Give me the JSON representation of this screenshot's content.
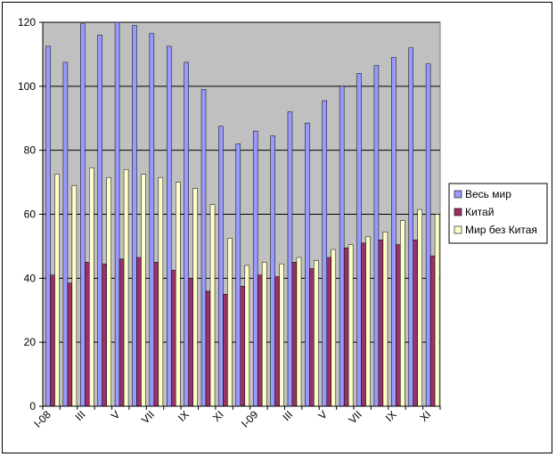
{
  "chart_data": {
    "type": "bar",
    "title": "",
    "xlabel": "",
    "ylabel": "",
    "ylim": [
      0,
      120
    ],
    "yticks": [
      0,
      20,
      40,
      60,
      80,
      100,
      120
    ],
    "grid": true,
    "legend_position": "right",
    "x_tick_labels": [
      "I-08",
      "III",
      "V",
      "VII",
      "IX",
      "XI",
      "I-09",
      "III",
      "V",
      "VII",
      "IX",
      "XI"
    ],
    "x_tick_every": 2,
    "n_periods": 23,
    "series": [
      {
        "name": "Весь мир",
        "color": "#9999ff",
        "values": [
          112.5,
          107.5,
          119.5,
          116,
          120,
          119,
          116.5,
          112.5,
          107.5,
          99,
          87.5,
          82,
          86,
          84.5,
          92,
          88.5,
          95.5,
          100,
          104,
          106.5,
          109,
          112,
          107
        ]
      },
      {
        "name": "Китай",
        "color": "#993366",
        "values": [
          41,
          38.5,
          45,
          44.5,
          46,
          46.5,
          45,
          42.5,
          40,
          36,
          35,
          37.5,
          41,
          40.5,
          45,
          43,
          46.5,
          49.5,
          51,
          52,
          50.5,
          52,
          47
        ]
      },
      {
        "name": "Мир без Китая",
        "color": "#ffffcc",
        "values": [
          72.5,
          69,
          74.5,
          71.5,
          74,
          72.5,
          71.5,
          70,
          68,
          63,
          52.5,
          44,
          45,
          44.5,
          46.5,
          45.5,
          49,
          50.5,
          53,
          54.5,
          58,
          61.5,
          60
        ]
      }
    ]
  }
}
